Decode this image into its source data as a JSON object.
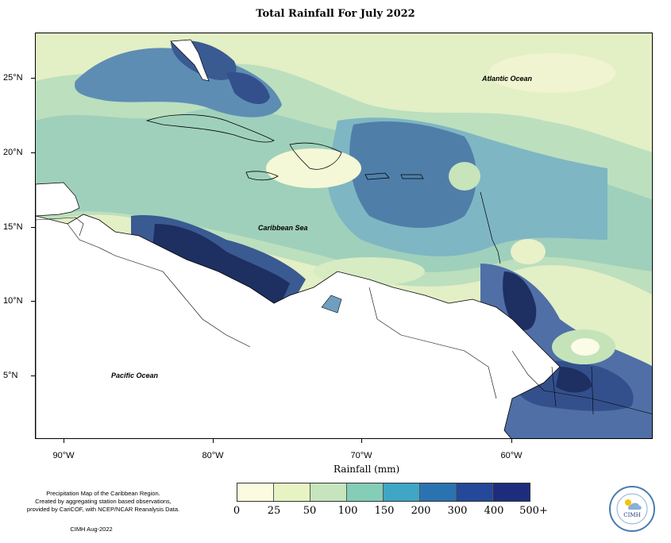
{
  "title": "Total Rainfall For July 2022",
  "map": {
    "lat_labels": [
      "25°N",
      "20°N",
      "15°N",
      "10°N",
      "5°N"
    ],
    "lon_labels": [
      "90°W",
      "80°W",
      "70°W",
      "60°W"
    ],
    "place_labels": {
      "atlantic": "Atlantic Ocean",
      "caribbean": "Caribbean Sea",
      "pacific": "Pacific Ocean"
    },
    "x_axis_label": "Rainfall (mm)"
  },
  "legend": {
    "labels": [
      "0",
      "25",
      "50",
      "100",
      "150",
      "200",
      "300",
      "400",
      "500+"
    ],
    "colors": [
      "#fbfbdf",
      "#e8f3c4",
      "#c6e5bd",
      "#84cdb6",
      "#3fa6c5",
      "#2b73b0",
      "#24489a",
      "#1d2d7e",
      "#0e1f5a"
    ]
  },
  "footnote": {
    "line1": "Precipitation Map of the Caribbean Region.",
    "line2": "Created by aggregating station based observations,",
    "line3": "provided by CariCOF, with NCEP/NCAR Reanalysis Data.",
    "credit": "CIMH Aug-2022"
  },
  "logo": {
    "text": "CIMH"
  }
}
